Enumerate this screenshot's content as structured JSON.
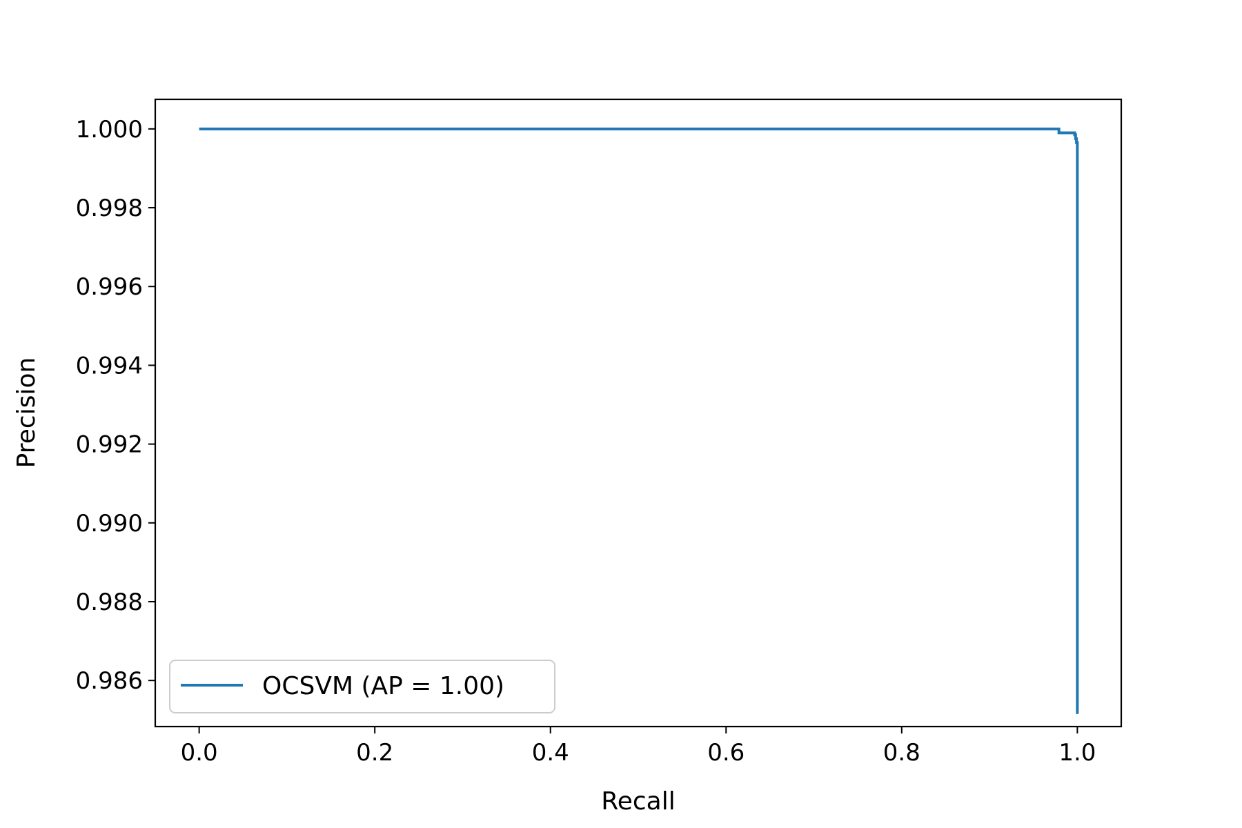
{
  "chart_data": {
    "type": "line",
    "title": "",
    "xlabel": "Recall",
    "ylabel": "Precision",
    "xlim": [
      -0.05,
      1.05
    ],
    "ylim": [
      0.98483,
      1.00075
    ],
    "x_ticks": [
      0.0,
      0.2,
      0.4,
      0.6,
      0.8,
      1.0
    ],
    "x_tick_labels": [
      "0.0",
      "0.2",
      "0.4",
      "0.6",
      "0.8",
      "1.0"
    ],
    "y_ticks": [
      0.986,
      0.988,
      0.99,
      0.992,
      0.994,
      0.996,
      0.998,
      1.0
    ],
    "y_tick_labels": [
      "0.986",
      "0.988",
      "0.990",
      "0.992",
      "0.994",
      "0.996",
      "0.998",
      "1.000"
    ],
    "grid": false,
    "legend": {
      "placement": "lower-left"
    },
    "series": [
      {
        "name": "OCSVM (AP = 1.00)",
        "color": "#1f77b4",
        "points": [
          [
            0.0,
            1.0
          ],
          [
            0.979,
            1.0
          ],
          [
            0.979,
            0.9999
          ],
          [
            0.997,
            0.9999
          ],
          [
            0.997,
            0.99985
          ],
          [
            0.998,
            0.99985
          ],
          [
            0.998,
            0.99975
          ],
          [
            0.999,
            0.99975
          ],
          [
            0.999,
            0.99965
          ],
          [
            1.0,
            0.99965
          ],
          [
            1.0,
            0.9963
          ],
          [
            1.0,
            0.9948
          ],
          [
            1.0,
            0.993
          ],
          [
            1.0,
            0.9906
          ],
          [
            1.0,
            0.9893
          ],
          [
            1.0,
            0.98515
          ]
        ]
      }
    ]
  }
}
